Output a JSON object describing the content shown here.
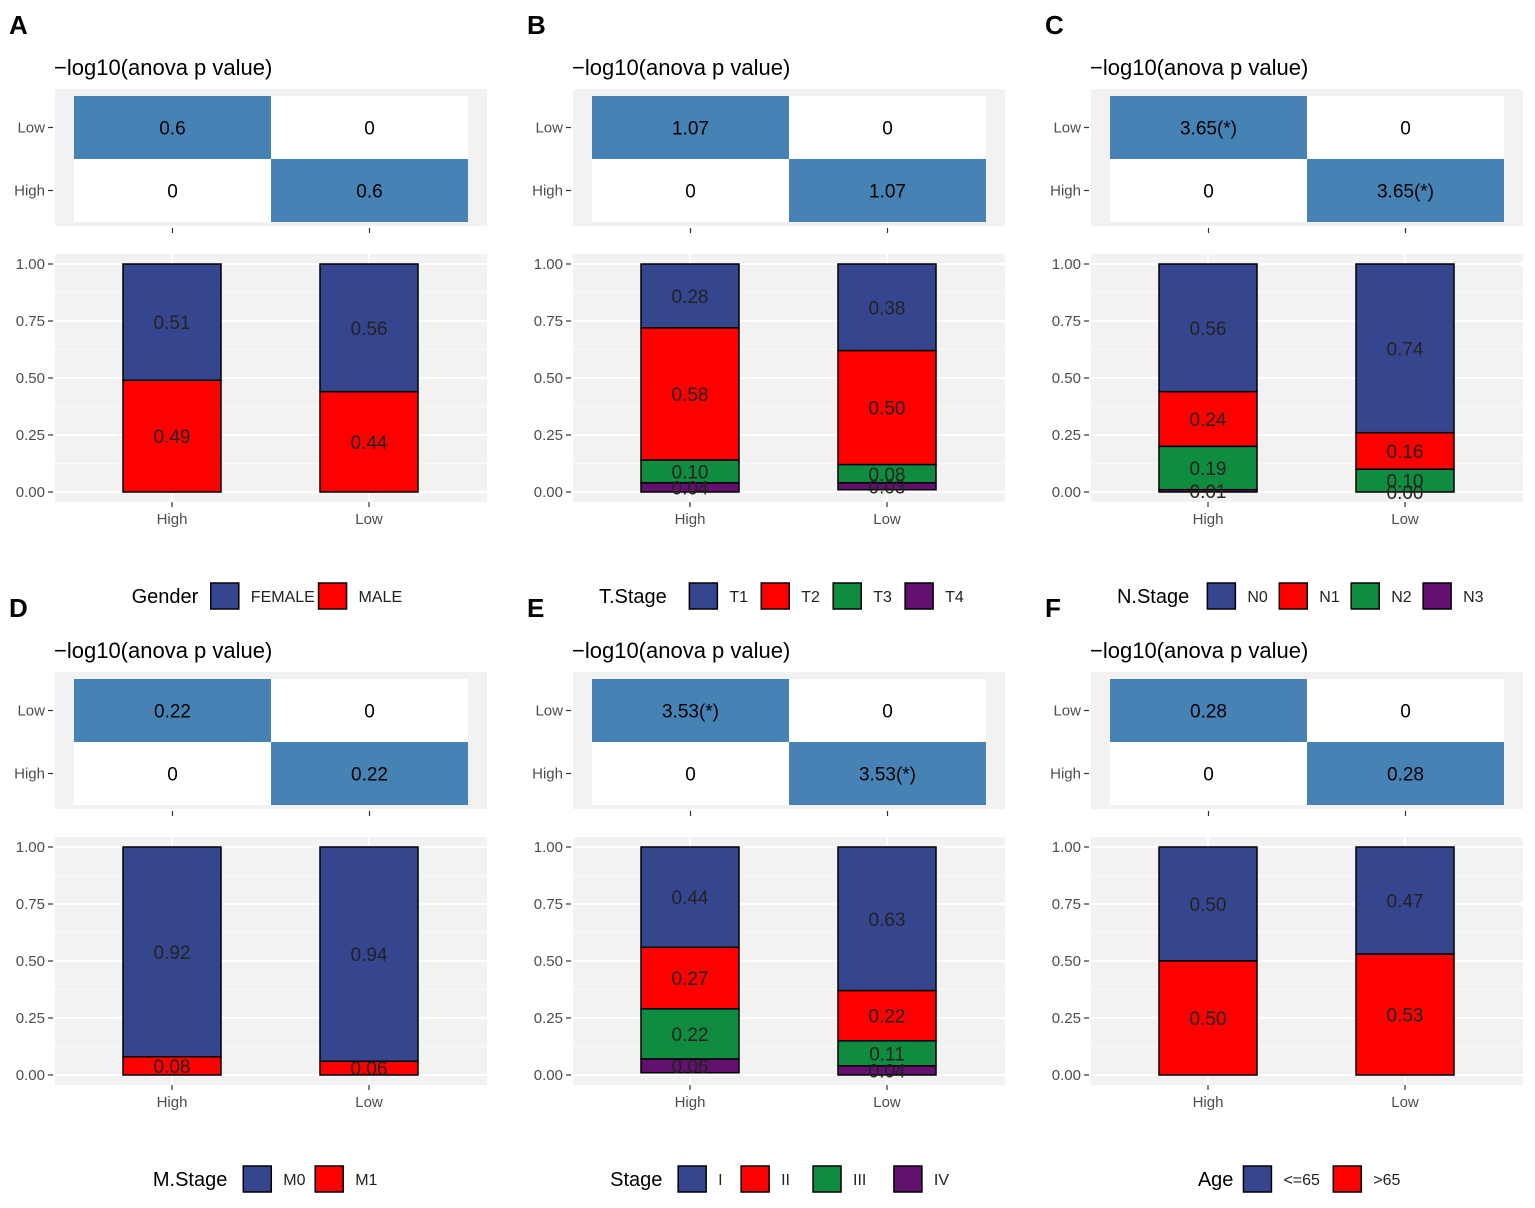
{
  "colors": {
    "heatmap_fill": "#4682b4",
    "panel_bg": "#f2f2f2",
    "series": [
      "#35468f",
      "#ff0000",
      "#0f8c3f",
      "#62126e"
    ]
  },
  "panels": [
    {
      "letter": "A",
      "heatmap": {
        "title": "−log10(anova p value)",
        "rows": [
          "Low",
          "High"
        ],
        "cells": [
          [
            "0.6",
            "0"
          ],
          [
            "0",
            "0.6"
          ]
        ]
      },
      "chart_data": {
        "type": "bar",
        "categories": [
          "High",
          "Low"
        ],
        "series": [
          {
            "name": "FEMALE",
            "values": [
              0.51,
              0.56
            ],
            "labels": [
              "0.51",
              "0.56"
            ]
          },
          {
            "name": "MALE",
            "values": [
              0.49,
              0.44
            ],
            "labels": [
              "0.49",
              "0.44"
            ]
          }
        ],
        "ylim": [
          0,
          1
        ],
        "yticks": [
          "0.00",
          "0.25",
          "0.50",
          "0.75",
          "1.00"
        ],
        "legend_title": "Gender"
      }
    },
    {
      "letter": "B",
      "heatmap": {
        "title": "−log10(anova p value)",
        "rows": [
          "Low",
          "High"
        ],
        "cells": [
          [
            "1.07",
            "0"
          ],
          [
            "0",
            "1.07"
          ]
        ]
      },
      "chart_data": {
        "type": "bar",
        "categories": [
          "High",
          "Low"
        ],
        "series": [
          {
            "name": "T1",
            "values": [
              0.28,
              0.38
            ],
            "labels": [
              "0.28",
              "0.38"
            ]
          },
          {
            "name": "T2",
            "values": [
              0.58,
              0.5
            ],
            "labels": [
              "0.58",
              "0.50"
            ]
          },
          {
            "name": "T3",
            "values": [
              0.1,
              0.08
            ],
            "labels": [
              "0.10",
              "0.08"
            ]
          },
          {
            "name": "T4",
            "values": [
              0.04,
              0.03
            ],
            "labels": [
              "0.04",
              "0.03"
            ]
          }
        ],
        "ylim": [
          0,
          1
        ],
        "yticks": [
          "0.00",
          "0.25",
          "0.50",
          "0.75",
          "1.00"
        ],
        "legend_title": "T.Stage"
      }
    },
    {
      "letter": "C",
      "heatmap": {
        "title": "−log10(anova p value)",
        "rows": [
          "Low",
          "High"
        ],
        "cells": [
          [
            "3.65(*)",
            "0"
          ],
          [
            "0",
            "3.65(*)"
          ]
        ]
      },
      "chart_data": {
        "type": "bar",
        "categories": [
          "High",
          "Low"
        ],
        "series": [
          {
            "name": "N0",
            "values": [
              0.56,
              0.74
            ],
            "labels": [
              "0.56",
              "0.74"
            ]
          },
          {
            "name": "N1",
            "values": [
              0.24,
              0.16
            ],
            "labels": [
              "0.24",
              "0.16"
            ]
          },
          {
            "name": "N2",
            "values": [
              0.19,
              0.1
            ],
            "labels": [
              "0.19",
              "0.10"
            ]
          },
          {
            "name": "N3",
            "values": [
              0.01,
              0.0
            ],
            "labels": [
              "0.01",
              "0.00"
            ]
          }
        ],
        "ylim": [
          0,
          1
        ],
        "yticks": [
          "0.00",
          "0.25",
          "0.50",
          "0.75",
          "1.00"
        ],
        "legend_title": "N.Stage"
      }
    },
    {
      "letter": "D",
      "heatmap": {
        "title": "−log10(anova p value)",
        "rows": [
          "Low",
          "High"
        ],
        "cells": [
          [
            "0.22",
            "0"
          ],
          [
            "0",
            "0.22"
          ]
        ]
      },
      "chart_data": {
        "type": "bar",
        "categories": [
          "High",
          "Low"
        ],
        "series": [
          {
            "name": "M0",
            "values": [
              0.92,
              0.94
            ],
            "labels": [
              "0.92",
              "0.94"
            ]
          },
          {
            "name": "M1",
            "values": [
              0.08,
              0.06
            ],
            "labels": [
              "0.08",
              "0.06"
            ]
          }
        ],
        "ylim": [
          0,
          1
        ],
        "yticks": [
          "0.00",
          "0.25",
          "0.50",
          "0.75",
          "1.00"
        ],
        "legend_title": "M.Stage"
      }
    },
    {
      "letter": "E",
      "heatmap": {
        "title": "−log10(anova p value)",
        "rows": [
          "Low",
          "High"
        ],
        "cells": [
          [
            "3.53(*)",
            "0"
          ],
          [
            "0",
            "3.53(*)"
          ]
        ]
      },
      "chart_data": {
        "type": "bar",
        "categories": [
          "High",
          "Low"
        ],
        "series": [
          {
            "name": "I",
            "values": [
              0.44,
              0.63
            ],
            "labels": [
              "0.44",
              "0.63"
            ]
          },
          {
            "name": "II",
            "values": [
              0.27,
              0.22
            ],
            "labels": [
              "0.27",
              "0.22"
            ]
          },
          {
            "name": "III",
            "values": [
              0.22,
              0.11
            ],
            "labels": [
              "0.22",
              "0.11"
            ]
          },
          {
            "name": "IV",
            "values": [
              0.06,
              0.04
            ],
            "labels": [
              "0.06",
              "0.04"
            ]
          }
        ],
        "ylim": [
          0,
          1
        ],
        "yticks": [
          "0.00",
          "0.25",
          "0.50",
          "0.75",
          "1.00"
        ],
        "legend_title": "Stage"
      }
    },
    {
      "letter": "F",
      "heatmap": {
        "title": "−log10(anova p value)",
        "rows": [
          "Low",
          "High"
        ],
        "cells": [
          [
            "0.28",
            "0"
          ],
          [
            "0",
            "0.28"
          ]
        ]
      },
      "chart_data": {
        "type": "bar",
        "categories": [
          "High",
          "Low"
        ],
        "series": [
          {
            "name": "<=65",
            "values": [
              0.5,
              0.47
            ],
            "labels": [
              "0.50",
              "0.47"
            ]
          },
          {
            "name": ">65",
            "values": [
              0.5,
              0.53
            ],
            "labels": [
              "0.50",
              "0.53"
            ]
          }
        ],
        "ylim": [
          0,
          1
        ],
        "yticks": [
          "0.00",
          "0.25",
          "0.50",
          "0.75",
          "1.00"
        ],
        "legend_title": "Age"
      }
    }
  ]
}
